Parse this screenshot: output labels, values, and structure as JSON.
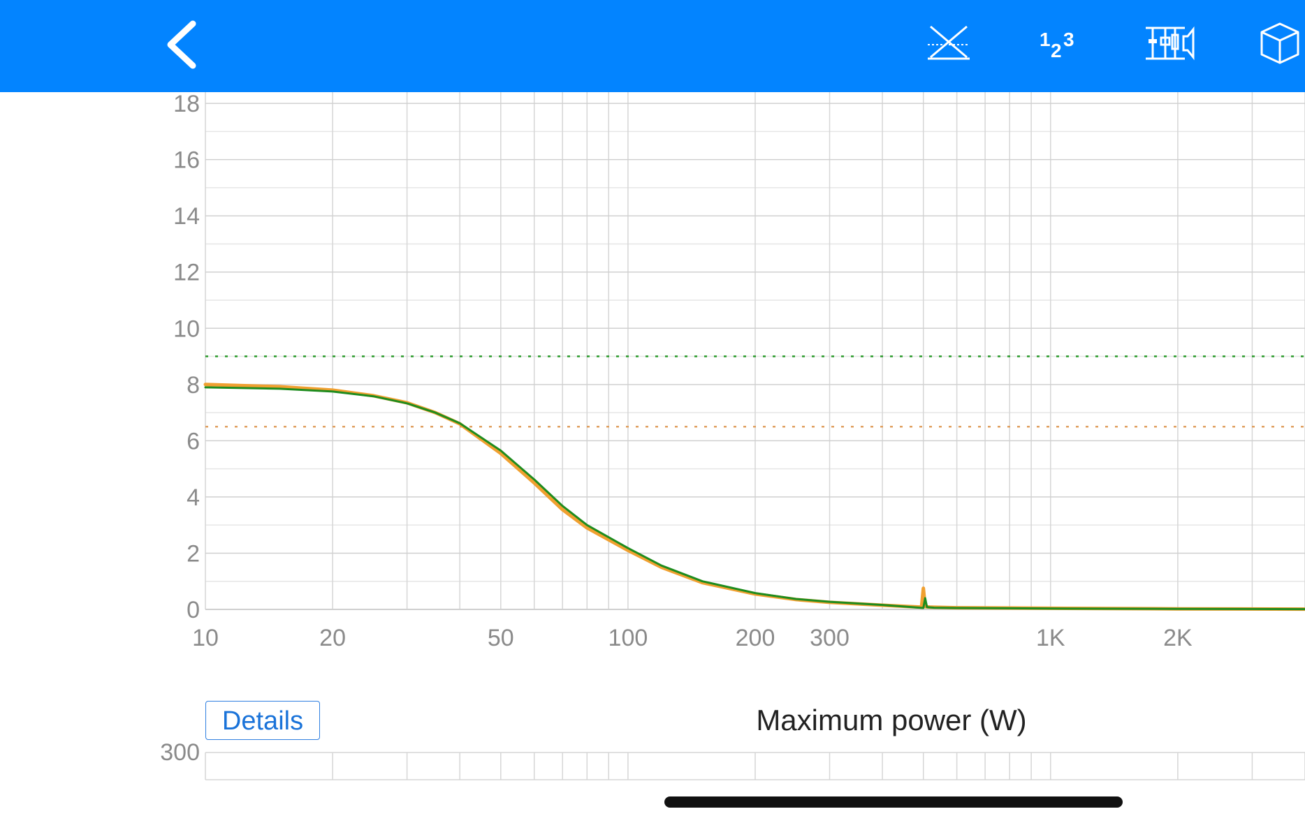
{
  "toolbar": {
    "back_icon": "chevron-left-icon",
    "icons": [
      "crossover-icon",
      "numbers-icon",
      "circuit-icon",
      "cube-icon"
    ],
    "background": "#0384ff"
  },
  "chart_data": {
    "type": "line",
    "x_scale": "log",
    "xlim": [
      10,
      4000
    ],
    "ylim": [
      0,
      18.4
    ],
    "x_ticks": [
      {
        "value": 10,
        "label": "10"
      },
      {
        "value": 20,
        "label": "20"
      },
      {
        "value": 50,
        "label": "50"
      },
      {
        "value": 100,
        "label": "100"
      },
      {
        "value": 200,
        "label": "200"
      },
      {
        "value": 300,
        "label": "300"
      },
      {
        "value": 1000,
        "label": "1K"
      },
      {
        "value": 2000,
        "label": "2K"
      }
    ],
    "y_ticks": [
      {
        "value": 0,
        "label": "0"
      },
      {
        "value": 2,
        "label": "2"
      },
      {
        "value": 4,
        "label": "4"
      },
      {
        "value": 6,
        "label": "6"
      },
      {
        "value": 8,
        "label": "8"
      },
      {
        "value": 10,
        "label": "10"
      },
      {
        "value": 12,
        "label": "12"
      },
      {
        "value": 14,
        "label": "14"
      },
      {
        "value": 16,
        "label": "16"
      },
      {
        "value": 18,
        "label": "18"
      }
    ],
    "grid": true,
    "reference_lines": [
      {
        "y": 9.0,
        "color": "#2a9a2a",
        "style": "dotted"
      },
      {
        "y": 6.5,
        "color": "#e0a060",
        "style": "dotted"
      }
    ],
    "series": [
      {
        "color": "#f0a030",
        "x": [
          10,
          15,
          20,
          25,
          30,
          35,
          40,
          50,
          60,
          70,
          80,
          100,
          120,
          150,
          200,
          250,
          300,
          400,
          495,
          500,
          505,
          520,
          600,
          800,
          1000,
          2000,
          4000
        ],
        "y": [
          8.0,
          7.92,
          7.8,
          7.6,
          7.35,
          7.0,
          6.6,
          5.55,
          4.5,
          3.55,
          2.9,
          2.1,
          1.5,
          0.95,
          0.55,
          0.35,
          0.25,
          0.15,
          0.08,
          0.75,
          0.1,
          0.08,
          0.06,
          0.05,
          0.04,
          0.02,
          0.01
        ]
      },
      {
        "color": "#1e8c1e",
        "x": [
          10,
          15,
          20,
          25,
          30,
          35,
          40,
          50,
          60,
          70,
          80,
          100,
          120,
          150,
          200,
          250,
          300,
          400,
          500,
          505,
          510,
          530,
          600,
          800,
          1000,
          2000,
          4000
        ],
        "y": [
          7.9,
          7.85,
          7.75,
          7.58,
          7.33,
          7.0,
          6.62,
          5.65,
          4.62,
          3.68,
          3.0,
          2.18,
          1.56,
          1.0,
          0.58,
          0.37,
          0.27,
          0.16,
          0.05,
          0.4,
          0.08,
          0.06,
          0.05,
          0.04,
          0.03,
          0.02,
          0.01
        ]
      }
    ]
  },
  "details_label": "Details",
  "power_chart": {
    "title": "Maximum power (W)",
    "y_tick_label": "300"
  }
}
